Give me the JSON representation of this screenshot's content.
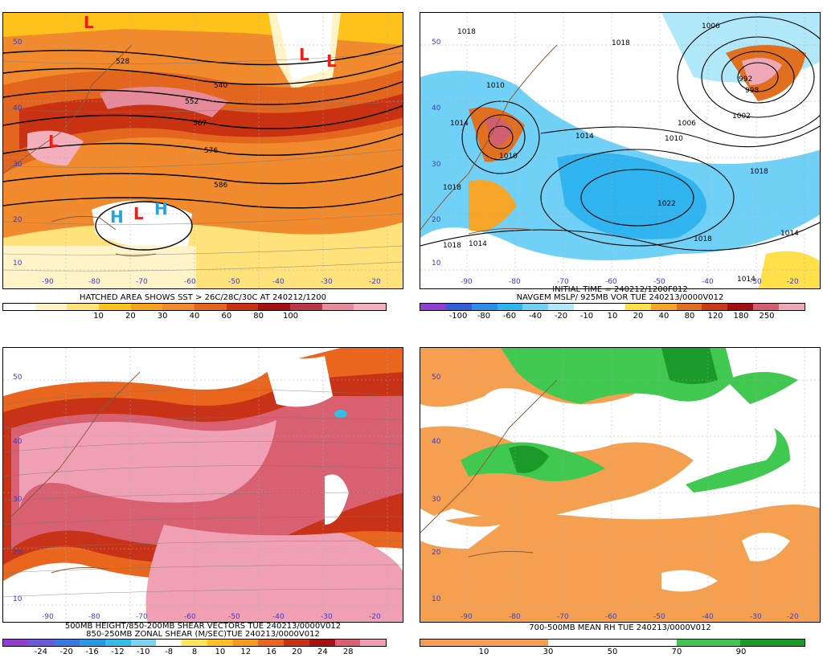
{
  "panels": [
    {
      "id": "p1",
      "caption": [
        "HATCHED AREA SHOWS SST > 26C/28C/30C AT 240212/1200"
      ],
      "colorbar": {
        "colors": [
          "#ffffff",
          "#fff4c8",
          "#ffe27a",
          "#ffc21a",
          "#f7a21e",
          "#f08a2c",
          "#e2661e",
          "#c83212",
          "#a51010",
          "#b83a48",
          "#e6899a",
          "#f3b0bc"
        ],
        "ticks": [
          "10",
          "20",
          "30",
          "40",
          "60",
          "80",
          "100"
        ]
      },
      "lat_labels": [
        "50",
        "40",
        "30",
        "20",
        "10"
      ],
      "lon_labels": [
        "-90",
        "-80",
        "-70",
        "-60",
        "-50",
        "-40",
        "-30",
        "-20"
      ],
      "contour_labels": [
        "528",
        "540",
        "552",
        "567",
        "576",
        "586"
      ],
      "centers": [
        {
          "t": "L",
          "color": "#e8221a"
        },
        {
          "t": "L",
          "color": "#e8221a"
        },
        {
          "t": "L",
          "color": "#e8221a"
        },
        {
          "t": "L",
          "color": "#e8221a"
        },
        {
          "t": "H",
          "color": "#27a3d8"
        },
        {
          "t": "L",
          "color": "#e8221a"
        },
        {
          "t": "H",
          "color": "#27a3d8"
        }
      ]
    },
    {
      "id": "p2",
      "caption": [
        "INITIAL TIME = 240212/1200F012",
        "NAVGEM MSLP/ 925MB VOR TUE 240213/0000V012"
      ],
      "colorbar": {
        "colors": [
          "#9040d0",
          "#3060d8",
          "#2890e8",
          "#30b4f0",
          "#70d0f5",
          "#b0e8fa",
          "#ffffff",
          "#ffffff",
          "#ffe04a",
          "#f5a528",
          "#e07020",
          "#c83a18",
          "#a01010",
          "#d06070",
          "#f0a8b8"
        ],
        "ticks": [
          "-100",
          "-80",
          "-60",
          "-40",
          "-20",
          "-10",
          "10",
          "20",
          "40",
          "80",
          "120",
          "180",
          "250"
        ]
      },
      "lat_labels": [
        "50",
        "40",
        "30",
        "20",
        "10"
      ],
      "lon_labels": [
        "-90",
        "-80",
        "-70",
        "-60",
        "-50",
        "-40",
        "-30",
        "-20"
      ],
      "contour_labels": [
        "1018",
        "1006",
        "1018",
        "1010",
        "1014",
        "1014",
        "1010",
        "1006",
        "1022",
        "1018",
        "1018",
        "1014",
        "1014",
        "1018",
        "1010",
        "992",
        "998",
        "1002",
        "1018",
        "1014"
      ]
    },
    {
      "id": "p3",
      "caption": [
        "500MB HEIGHT/850-200MB SHEAR VECTORS TUE 240213/0000V012",
        "850-250MB ZONAL SHEAR (M/SEC)TUE 240213/0000V012"
      ],
      "colorbar": {
        "colors": [
          "#9040d0",
          "#6a5ad8",
          "#3a78e0",
          "#2a98e8",
          "#35bce8",
          "#7ad6ef",
          "#ffffff",
          "#ffe45c",
          "#ffc222",
          "#f59a22",
          "#e8661e",
          "#c83216",
          "#a81012",
          "#d86070",
          "#f0a0b4"
        ],
        "ticks": [
          "-24",
          "-20",
          "-16",
          "-12",
          "-10",
          "-8",
          "8",
          "10",
          "12",
          "16",
          "20",
          "24",
          "28"
        ]
      },
      "lat_labels": [
        "50",
        "40",
        "30",
        "20",
        "10"
      ],
      "lon_labels": [
        "-90",
        "-80",
        "-70",
        "-60",
        "-50",
        "-40",
        "-30",
        "-20"
      ]
    },
    {
      "id": "p4",
      "caption": [
        "700-500MB MEAN RH TUE 240213/0000V012"
      ],
      "colorbar": {
        "colors": [
          "#f5a050",
          "#f5a050",
          "#ffffff",
          "#ffffff",
          "#40c850",
          "#1a9a28"
        ],
        "ticks": [
          "10",
          "30",
          "50",
          "70",
          "90"
        ]
      },
      "lat_labels": [
        "50",
        "40",
        "30",
        "20",
        "10"
      ],
      "lon_labels": [
        "-90",
        "-80",
        "-70",
        "-60",
        "-50",
        "-40",
        "-30",
        "-20"
      ]
    }
  ]
}
